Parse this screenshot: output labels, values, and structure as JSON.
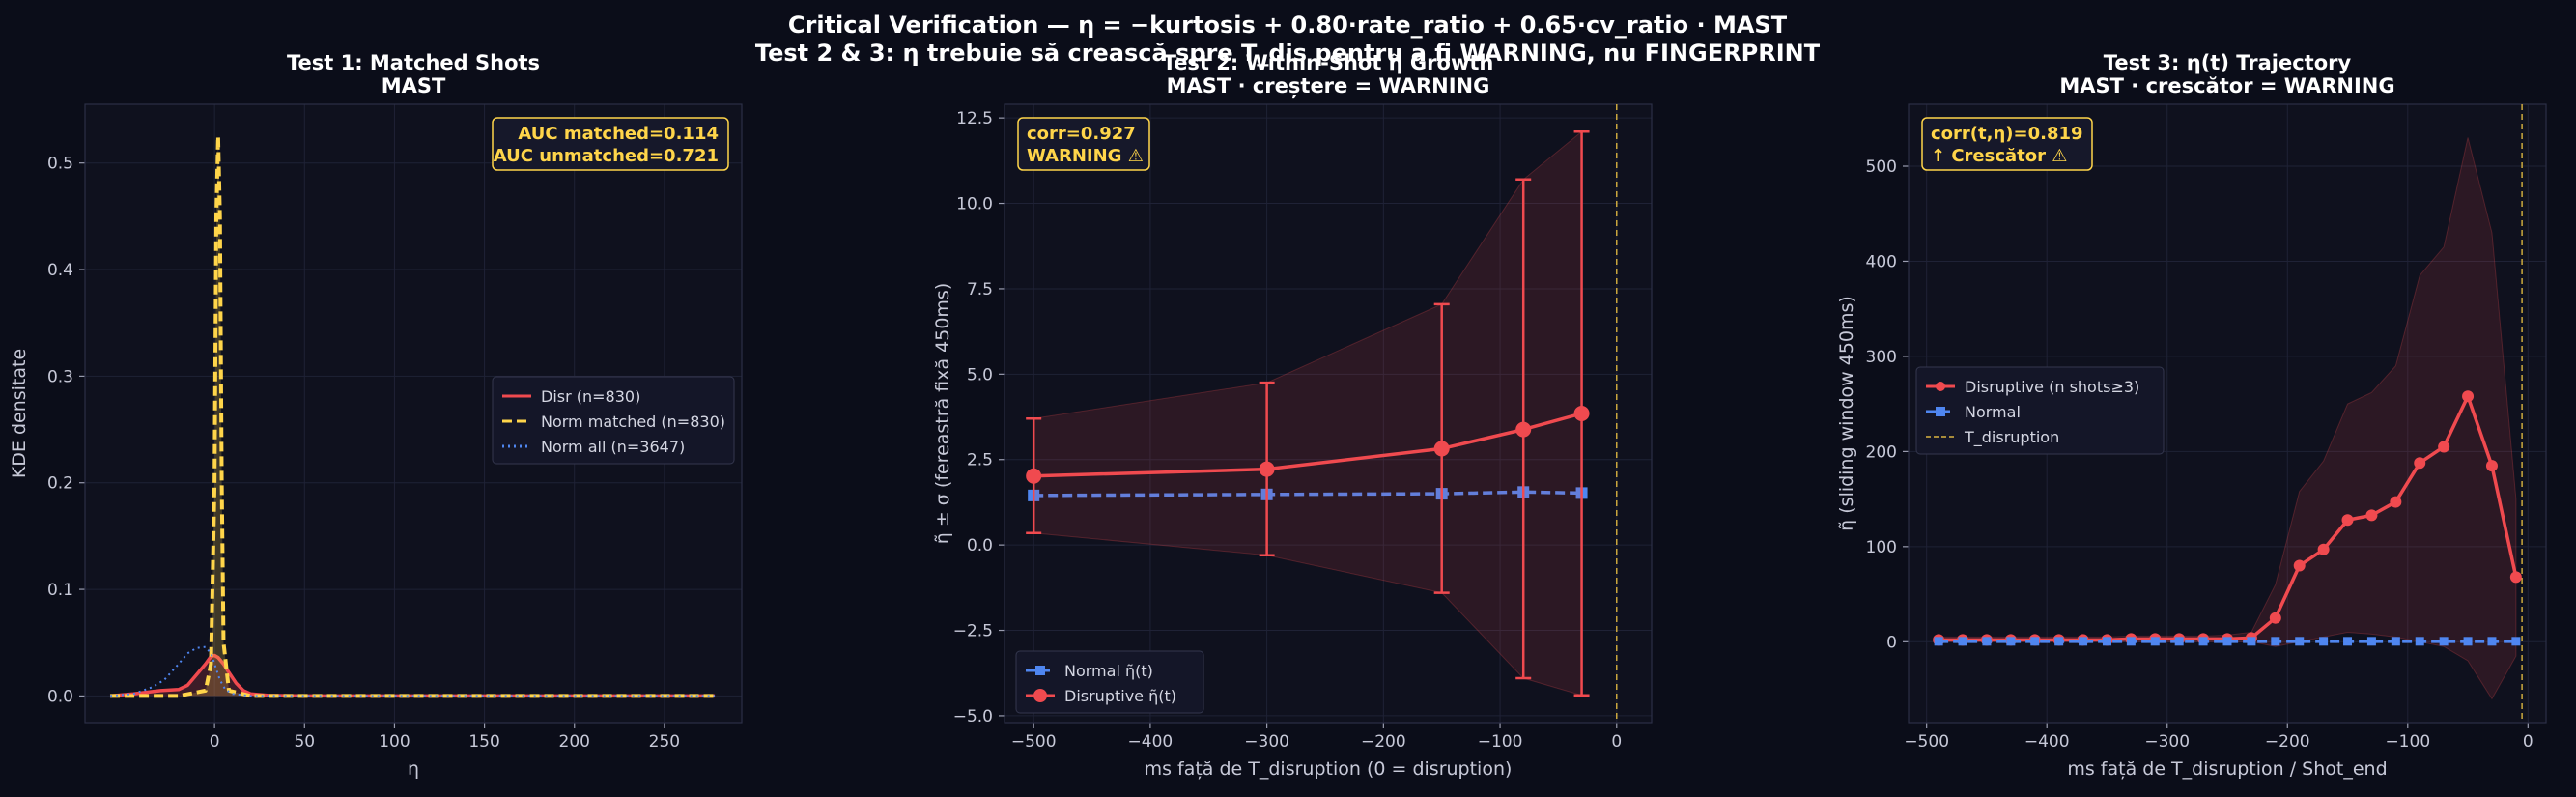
{
  "suptitle": {
    "line1": "Critical Verification — η = −kurtosis + 0.80·rate_ratio + 0.65·cv_ratio · MAST",
    "line2": "Test 2 & 3: η trebuie să crească spre T_dis pentru a fi WARNING, nu FINGERPRINT"
  },
  "colors": {
    "background": "#0b0d19",
    "axes_bg": "#0f111e",
    "disruptive": "#f04a4f",
    "normal_matched": "#ffd54a",
    "normal": "#4f86f0",
    "annotation": "#ffd54a",
    "t_disruption": "#d9b340"
  },
  "chart_data": [
    {
      "type": "line",
      "title": [
        "Test 1: Matched Shots",
        "MAST"
      ],
      "xlabel": "η",
      "ylabel": "KDE densitate",
      "xlim": [
        -72,
        293
      ],
      "ylim": [
        -0.025,
        0.555
      ],
      "xticks": [
        0,
        50,
        100,
        150,
        200,
        250
      ],
      "yticks": [
        0.0,
        0.1,
        0.2,
        0.3,
        0.4,
        0.5
      ],
      "grid": true,
      "legend_position": "center-right",
      "annotation": [
        "AUC matched=0.114",
        "AUC unmatched=0.721"
      ],
      "series": [
        {
          "name": "Disr (n=830)",
          "style": "solid",
          "x": [
            -58,
            -45,
            -30,
            -20,
            -15,
            -10,
            -5,
            -2,
            0,
            2,
            5,
            8,
            12,
            16,
            20,
            30,
            50,
            100,
            150,
            200,
            278
          ],
          "y": [
            0.0,
            0.002,
            0.005,
            0.006,
            0.01,
            0.02,
            0.03,
            0.037,
            0.038,
            0.036,
            0.03,
            0.022,
            0.012,
            0.005,
            0.002,
            0.0005,
            0.0,
            0.0,
            0.0,
            0.0,
            0.0
          ]
        },
        {
          "name": "Norm matched (n=830)",
          "style": "dashed",
          "x": [
            -58,
            -20,
            -5,
            -2,
            0,
            1,
            2,
            3,
            4,
            5,
            8,
            20,
            278
          ],
          "y": [
            0.0,
            0.0,
            0.005,
            0.03,
            0.2,
            0.45,
            0.525,
            0.45,
            0.2,
            0.05,
            0.005,
            0.0,
            0.0
          ]
        },
        {
          "name": "Norm all (n=3647)",
          "style": "dotted",
          "x": [
            -58,
            -45,
            -35,
            -28,
            -20,
            -15,
            -10,
            -5,
            -2,
            0,
            3,
            6,
            10,
            20,
            278
          ],
          "y": [
            0.0,
            0.002,
            0.008,
            0.015,
            0.03,
            0.04,
            0.045,
            0.046,
            0.04,
            0.03,
            0.015,
            0.006,
            0.002,
            0.0,
            0.0
          ]
        }
      ]
    },
    {
      "type": "line",
      "title": [
        "Test 2: Within-Shot η̃ Growth",
        "MAST · creștere = WARNING"
      ],
      "xlabel": "ms față de T_disruption (0 = disruption)",
      "ylabel": "η̃ ± σ (fereastră fixă 450ms)",
      "xlim": [
        -525,
        30
      ],
      "ylim": [
        -5.2,
        12.9
      ],
      "xticks": [
        -500,
        -400,
        -300,
        -200,
        -100,
        0
      ],
      "yticks": [
        -5.0,
        -2.5,
        0.0,
        2.5,
        5.0,
        7.5,
        10.0,
        12.5
      ],
      "grid": true,
      "legend_position": "lower-left",
      "annotation": [
        "corr=0.927",
        "WARNING ⚠"
      ],
      "vline_x": 0,
      "series": [
        {
          "name": "Normal η̃(t)",
          "style": "dashed",
          "x": [
            -500,
            -300,
            -150,
            -80,
            -30
          ],
          "y": [
            1.45,
            1.48,
            1.5,
            1.55,
            1.52
          ]
        },
        {
          "name": "Disruptive η̃(t)",
          "style": "solid",
          "x": [
            -500,
            -300,
            -150,
            -80,
            -30
          ],
          "y": [
            2.02,
            2.22,
            2.82,
            3.38,
            3.85
          ],
          "lower": [
            0.35,
            -0.3,
            -1.4,
            -3.9,
            -4.4
          ],
          "upper": [
            3.7,
            4.75,
            7.05,
            10.7,
            12.1
          ]
        }
      ]
    },
    {
      "type": "line",
      "title": [
        "Test 3: η(t) Trajectory",
        "MAST · crescător = WARNING"
      ],
      "xlabel": "ms față de T_disruption / Shot_end",
      "ylabel": "η̃ (sliding window 450ms)",
      "xlim": [
        -515,
        15
      ],
      "ylim": [
        -85,
        565
      ],
      "xticks": [
        -500,
        -400,
        -300,
        -200,
        -100,
        0
      ],
      "yticks": [
        0,
        100,
        200,
        300,
        400,
        500
      ],
      "grid": true,
      "legend_position": "center-left",
      "annotation": [
        "corr(t,η)=0.819",
        "↑ Crescător ⚠"
      ],
      "vline_x": -5,
      "series": [
        {
          "name": "Disruptive (n shots≥3)",
          "style": "solid",
          "x": [
            -490,
            -470,
            -450,
            -430,
            -410,
            -390,
            -370,
            -350,
            -330,
            -310,
            -290,
            -270,
            -250,
            -230,
            -210,
            -190,
            -170,
            -150,
            -130,
            -110,
            -90,
            -70,
            -50,
            -30,
            -10
          ],
          "y": [
            2,
            2,
            2,
            2,
            2,
            2,
            2,
            2,
            3,
            3,
            3,
            3,
            3,
            4,
            25,
            80,
            97,
            128,
            133,
            147,
            188,
            205,
            258,
            185,
            68
          ],
          "lower": [
            0,
            0,
            0,
            0,
            0,
            0,
            0,
            0,
            0,
            0,
            0,
            0,
            0,
            0,
            -5,
            0,
            5,
            10,
            8,
            5,
            0,
            -5,
            -20,
            -60,
            -15
          ],
          "upper": [
            5,
            5,
            5,
            5,
            5,
            5,
            5,
            5,
            6,
            6,
            6,
            6,
            7,
            10,
            60,
            158,
            190,
            250,
            262,
            290,
            385,
            415,
            530,
            430,
            150
          ]
        },
        {
          "name": "Normal",
          "style": "dashed",
          "x": [
            -490,
            -470,
            -450,
            -430,
            -410,
            -390,
            -370,
            -350,
            -330,
            -310,
            -290,
            -270,
            -250,
            -230,
            -210,
            -190,
            -170,
            -150,
            -130,
            -110,
            -90,
            -70,
            -50,
            -30,
            -10
          ],
          "y": [
            0.5,
            0.5,
            0.5,
            0.5,
            0.5,
            0.5,
            0.5,
            0.5,
            0.5,
            0.5,
            0.5,
            0.5,
            0.5,
            0.5,
            0.5,
            0.5,
            0.5,
            0.5,
            0.5,
            0.5,
            0.5,
            0.5,
            0.5,
            0.5,
            0.5
          ]
        },
        {
          "name": "T_disruption",
          "style": "vline"
        }
      ]
    }
  ]
}
